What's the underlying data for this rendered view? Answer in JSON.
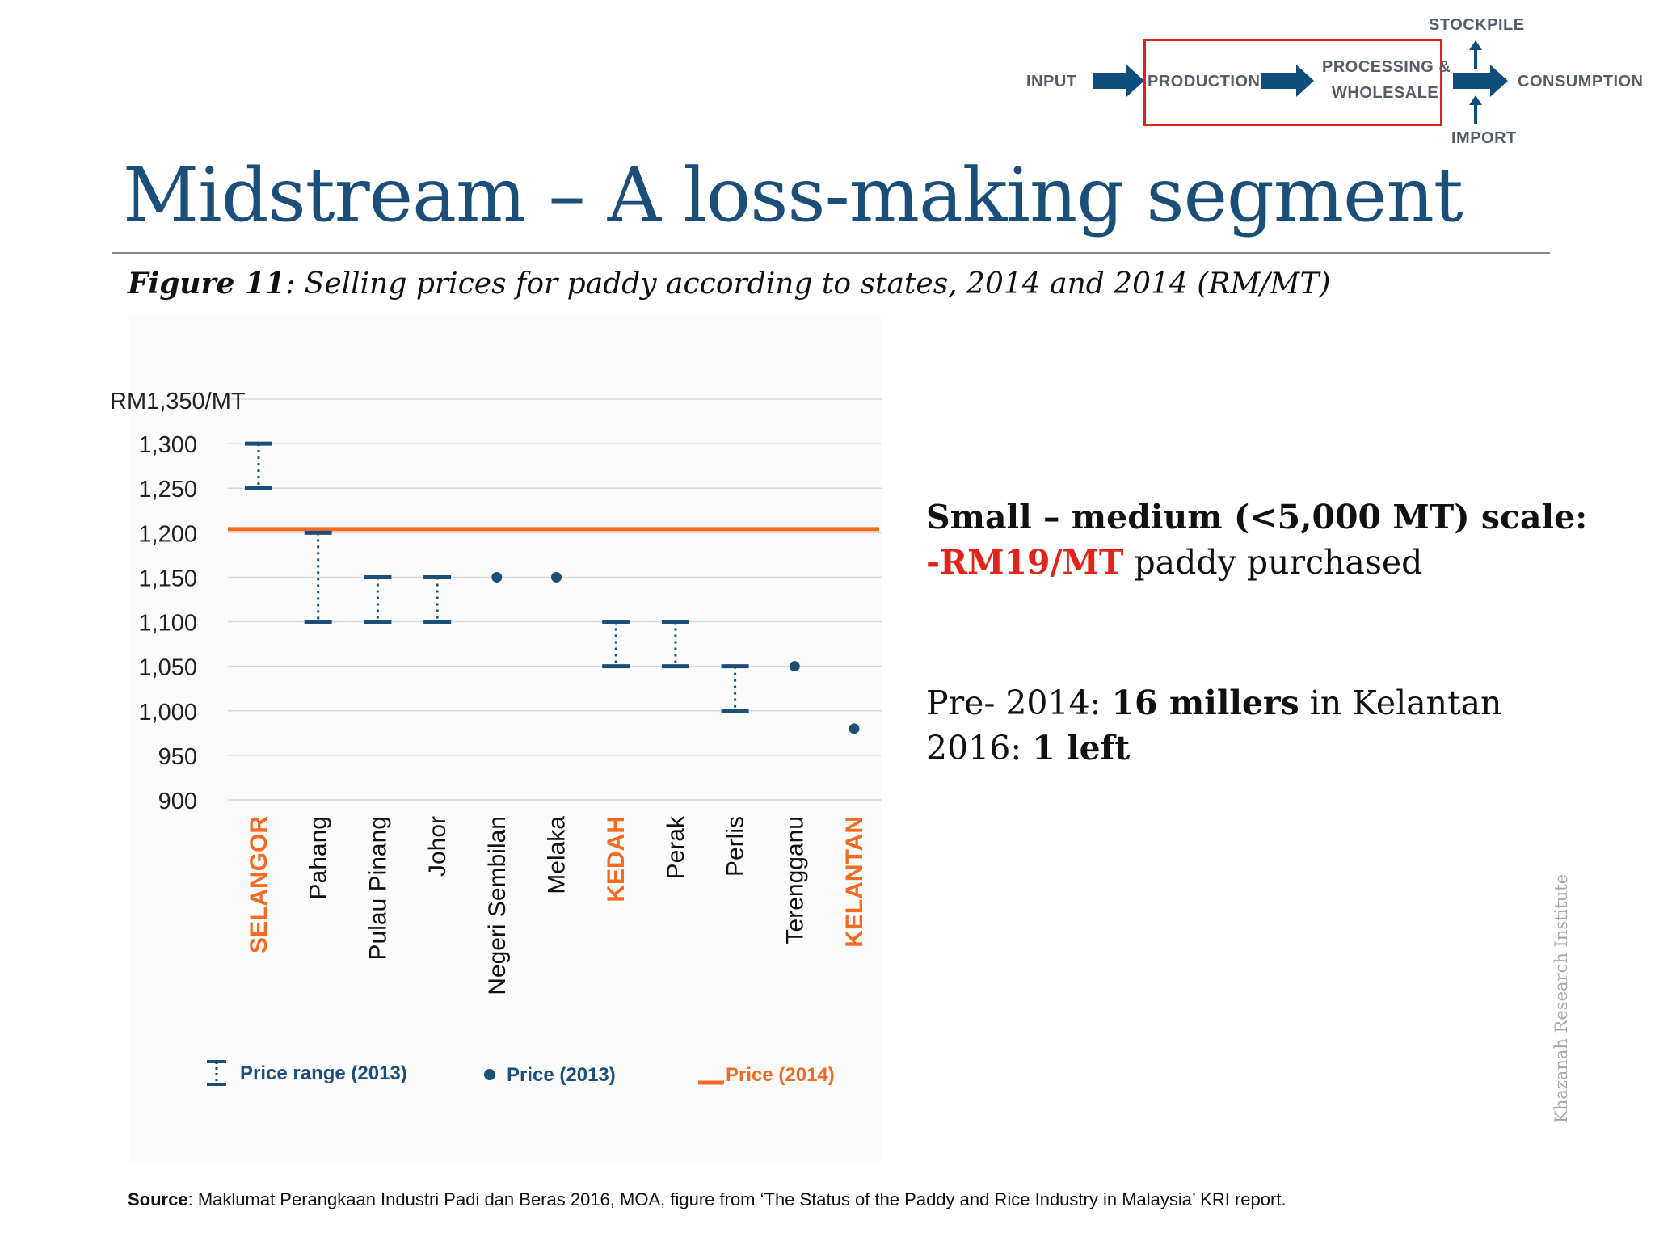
{
  "value_chain": {
    "input": "INPUT",
    "production": "PRODUCTION",
    "processing_line1": "PROCESSING &",
    "processing_line2": "WHOLESALE",
    "stockpile": "STOCKPILE",
    "import": "IMPORT",
    "consumption": "CONSUMPTION"
  },
  "title": "Midstream – A loss-making segment",
  "figure": {
    "label": "Figure 11",
    "caption": ":  Selling prices for paddy according to states, 2014 and 2014 (RM/MT)"
  },
  "chart_data": {
    "type": "range-dot",
    "y_unit_label": "RM1,350/MT",
    "ylim": [
      900,
      1350
    ],
    "yticks": [
      900,
      950,
      1000,
      1050,
      1100,
      1150,
      1200,
      1250,
      1300
    ],
    "ytick_labels": [
      "900",
      "950",
      "1,000",
      "1,050",
      "1,100",
      "1,150",
      "1,200",
      "1,250",
      "1,300"
    ],
    "categories": [
      "SELANGOR",
      "Pahang",
      "Pulau Pinang",
      "Johor",
      "Negeri Sembilan",
      "Melaka",
      "KEDAH",
      "Perak",
      "Perlis",
      "Terengganu",
      "KELANTAN"
    ],
    "highlighted": [
      "SELANGOR",
      "KEDAH",
      "KELANTAN"
    ],
    "series": [
      {
        "name": "Price range (2013)",
        "ranges": [
          [
            1250,
            1300
          ],
          [
            1100,
            1200
          ],
          [
            1100,
            1150
          ],
          [
            1100,
            1150
          ],
          null,
          null,
          [
            1050,
            1100
          ],
          [
            1050,
            1100
          ],
          [
            1000,
            1050
          ],
          null,
          null
        ]
      },
      {
        "name": "Price (2013)",
        "values": [
          null,
          null,
          null,
          null,
          1150,
          1150,
          null,
          null,
          null,
          1050,
          980
        ]
      },
      {
        "name": "Price (2014)",
        "value": 1204
      }
    ],
    "legend": [
      "Price range (2013)",
      "Price (2013)",
      "Price (2014)"
    ],
    "colors": {
      "range": "#1b4f7a",
      "dot": "#1b4f7a",
      "line2014": "#f26b21",
      "highlight": "#f26b21",
      "grid": "#d9d9d9"
    }
  },
  "callout1": {
    "line1": "Small – medium (<5,000 MT) scale:",
    "loss": "-RM19/MT",
    "line2_rest": " paddy purchased"
  },
  "callout2": {
    "line1_pre": "Pre- 2014: ",
    "line1_bold": "16 millers",
    "line1_post": " in Kelantan",
    "line2_pre": "2016: ",
    "line2_bold": "1 left"
  },
  "watermark": "Khazanah Research Institute",
  "source": {
    "label": "Source",
    "text": ": Maklumat Perangkaan Industri Padi dan Beras 2016, MOA, figure from ‘The Status of the Paddy and Rice Industry in Malaysia’ KRI report."
  }
}
